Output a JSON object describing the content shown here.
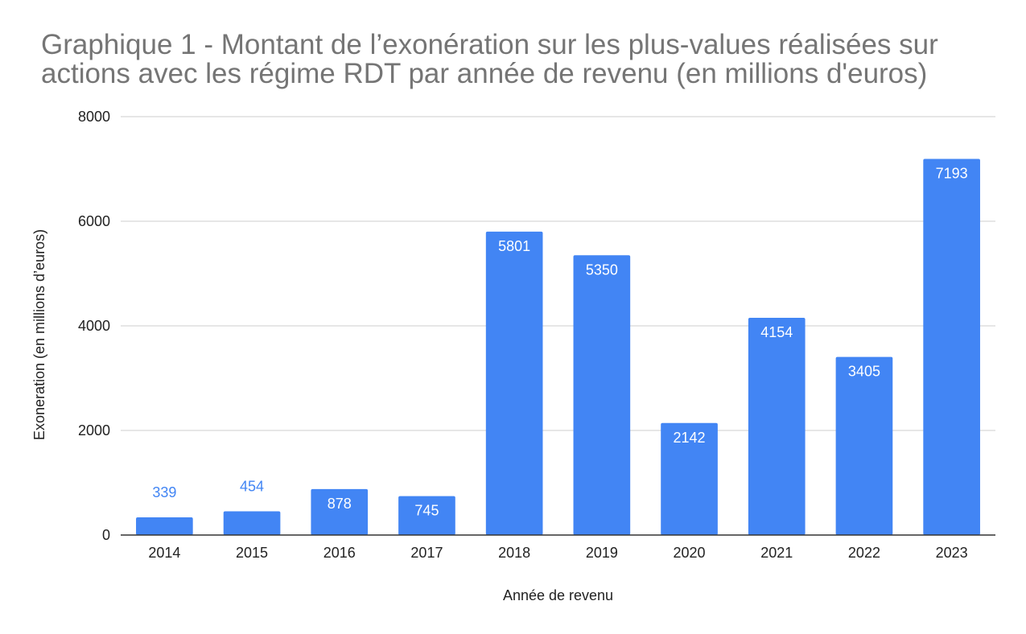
{
  "chart_data": {
    "type": "bar",
    "title": "Graphique 1 - Montant de l’exonération sur les plus-values réalisées sur actions avec les régime RDT par année de revenu (en millions d'euros)",
    "xlabel": "Année de revenu",
    "ylabel": "Exoneration (en millions d’euros)",
    "categories": [
      "2014",
      "2015",
      "2016",
      "2017",
      "2018",
      "2019",
      "2020",
      "2021",
      "2022",
      "2023"
    ],
    "values": [
      339,
      454,
      878,
      745,
      5801,
      5350,
      2142,
      4154,
      3405,
      7193
    ],
    "data_labels": [
      "339",
      "454",
      "878",
      "745",
      "5801",
      "5350",
      "2142",
      "4154",
      "3405",
      "7193"
    ],
    "ylim": [
      0,
      8000
    ],
    "yticks": [
      0,
      2000,
      4000,
      6000,
      8000
    ],
    "ytick_labels": [
      "0",
      "2000",
      "4000",
      "6000",
      "8000"
    ],
    "grid": true,
    "legend": "none",
    "colors": {
      "bar": "#4285f4",
      "label_inside": "#ffffff",
      "label_outside": "#4285f4",
      "grid": "#cccccc",
      "axis": "#333333",
      "title": "#757575"
    }
  }
}
